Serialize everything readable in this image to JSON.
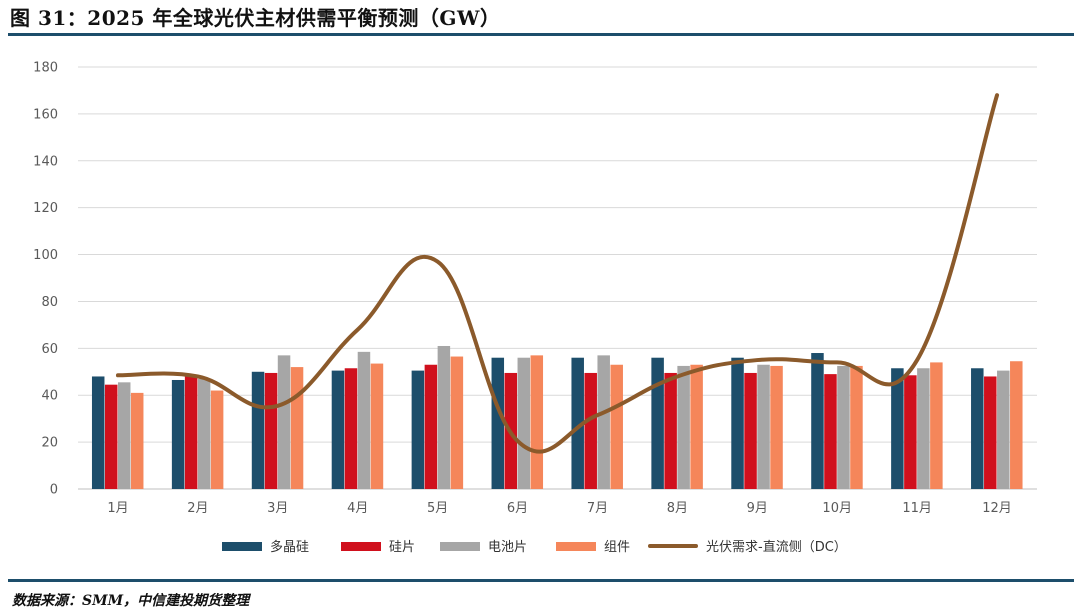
{
  "title": "图 31：2025 年全球光伏主材供需平衡预测（GW）",
  "source": "数据来源：SMM，中信建投期货整理",
  "colors": {
    "poly": "#1d4e6b",
    "wafer": "#d0101d",
    "cell": "#a6a6a6",
    "module": "#f5865a",
    "demand": "#8b5a2b",
    "rule": "#1d4e6b",
    "grid": "#d9d9d9"
  },
  "chart_data": {
    "type": "bar",
    "categories": [
      "1月",
      "2月",
      "3月",
      "4月",
      "5月",
      "6月",
      "7月",
      "8月",
      "9月",
      "10月",
      "11月",
      "12月"
    ],
    "ylim": [
      0,
      180
    ],
    "yticks": [
      0,
      20,
      40,
      60,
      80,
      100,
      120,
      140,
      160,
      180
    ],
    "grid": true,
    "legend_position": "bottom",
    "series": [
      {
        "name": "多晶硅",
        "type": "bar",
        "color": "#1d4e6b",
        "values": [
          48,
          46.5,
          50,
          50.5,
          50.5,
          56,
          56,
          56,
          56,
          58,
          51.5,
          51.5
        ]
      },
      {
        "name": "硅片",
        "type": "bar",
        "color": "#d0101d",
        "values": [
          44.5,
          48,
          49.5,
          51.5,
          53,
          49.5,
          49.5,
          49.5,
          49.5,
          49,
          48.5,
          48
        ]
      },
      {
        "name": "电池片",
        "type": "bar",
        "color": "#a6a6a6",
        "values": [
          45.5,
          47,
          57,
          58.5,
          61,
          56,
          57,
          52.5,
          53,
          52.5,
          51.5,
          50.5
        ]
      },
      {
        "name": "组件",
        "type": "bar",
        "color": "#f5865a",
        "values": [
          41,
          42,
          52,
          53.5,
          56.5,
          57,
          53,
          53,
          52.5,
          52.5,
          54,
          54.5
        ]
      },
      {
        "name": "光伏需求-直流侧（DC）",
        "type": "line",
        "color": "#8b5a2b",
        "values": [
          48.5,
          48,
          35.5,
          68,
          97,
          20.5,
          31.5,
          48,
          55,
          54,
          55,
          168
        ]
      }
    ]
  }
}
